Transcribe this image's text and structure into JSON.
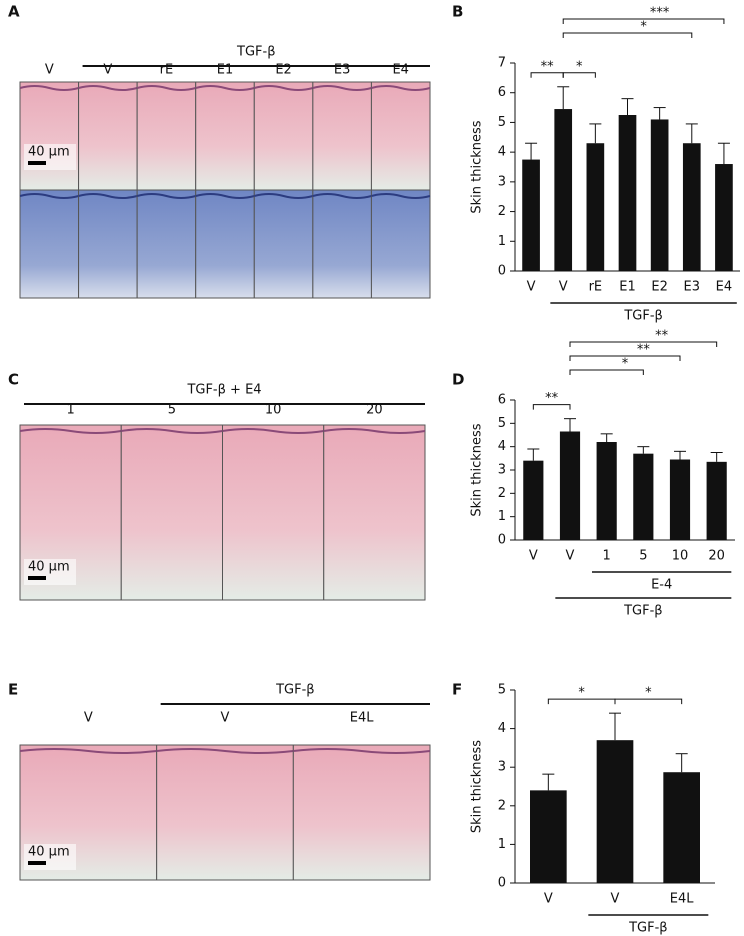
{
  "panel_letters": [
    "A",
    "B",
    "C",
    "D",
    "E",
    "F"
  ],
  "micrographs": [
    {
      "group_label": "TGF-β",
      "labels": [
        "V",
        "V",
        "rE",
        "E1",
        "E2",
        "E3",
        "E4"
      ],
      "scale_bar": "40 µm"
    },
    {
      "group_label": "TGF-β + E4",
      "labels": [
        "1",
        "5",
        "10",
        "20"
      ],
      "scale_bar": "40 µm"
    },
    {
      "group_label": "TGF-β",
      "labels": [
        "V",
        "V",
        "E4L"
      ],
      "scale_bar": "40 µm"
    }
  ],
  "chart_data": [
    {
      "type": "bar",
      "ylabel": "Skin thickness",
      "color": "#111111",
      "categories": [
        "V",
        "V",
        "rE",
        "E1",
        "E2",
        "E3",
        "E4"
      ],
      "values": [
        3.75,
        5.45,
        4.3,
        5.25,
        5.1,
        4.3,
        3.6
      ],
      "errors": [
        0.55,
        0.75,
        0.65,
        0.55,
        0.4,
        0.65,
        0.7
      ],
      "ylim": [
        0,
        7
      ],
      "yticks": [
        0,
        1,
        2,
        3,
        4,
        5,
        6,
        7
      ],
      "groups": [
        {
          "label": "TGF-β",
          "span": [
            1,
            6
          ]
        }
      ],
      "brackets": [
        {
          "span": [
            0,
            1
          ],
          "label": "**"
        },
        {
          "span": [
            1,
            2
          ],
          "label": "*"
        },
        {
          "span": [
            1,
            5
          ],
          "label": "*"
        },
        {
          "span": [
            1,
            6
          ],
          "label": "***"
        }
      ]
    },
    {
      "type": "bar",
      "ylabel": "Skin thickness",
      "color": "#111111",
      "categories": [
        "V",
        "V",
        "1",
        "5",
        "10",
        "20"
      ],
      "values": [
        3.4,
        4.65,
        4.2,
        3.7,
        3.45,
        3.35
      ],
      "errors": [
        0.5,
        0.55,
        0.35,
        0.3,
        0.35,
        0.4
      ],
      "ylim": [
        0,
        6
      ],
      "yticks": [
        0,
        1,
        2,
        3,
        4,
        5,
        6
      ],
      "groups": [
        {
          "label": "E-4",
          "span": [
            2,
            5
          ]
        },
        {
          "label": "TGF-β",
          "span": [
            1,
            5
          ]
        }
      ],
      "brackets": [
        {
          "span": [
            0,
            1
          ],
          "label": "**"
        },
        {
          "span": [
            1,
            3
          ],
          "label": "*"
        },
        {
          "span": [
            1,
            4
          ],
          "label": "**"
        },
        {
          "span": [
            1,
            5
          ],
          "label": "**"
        }
      ]
    },
    {
      "type": "bar",
      "ylabel": "Skin thickness",
      "color": "#111111",
      "categories": [
        "V",
        "V",
        "E4L"
      ],
      "values": [
        2.4,
        3.7,
        2.87
      ],
      "errors": [
        0.42,
        0.7,
        0.48
      ],
      "ylim": [
        0,
        5
      ],
      "yticks": [
        0,
        1,
        2,
        3,
        4,
        5
      ],
      "groups": [
        {
          "label": "TGF-β",
          "span": [
            1,
            2
          ]
        }
      ],
      "brackets": [
        {
          "span": [
            0,
            1
          ],
          "label": "*"
        },
        {
          "span": [
            1,
            2
          ],
          "label": "*"
        }
      ]
    }
  ]
}
